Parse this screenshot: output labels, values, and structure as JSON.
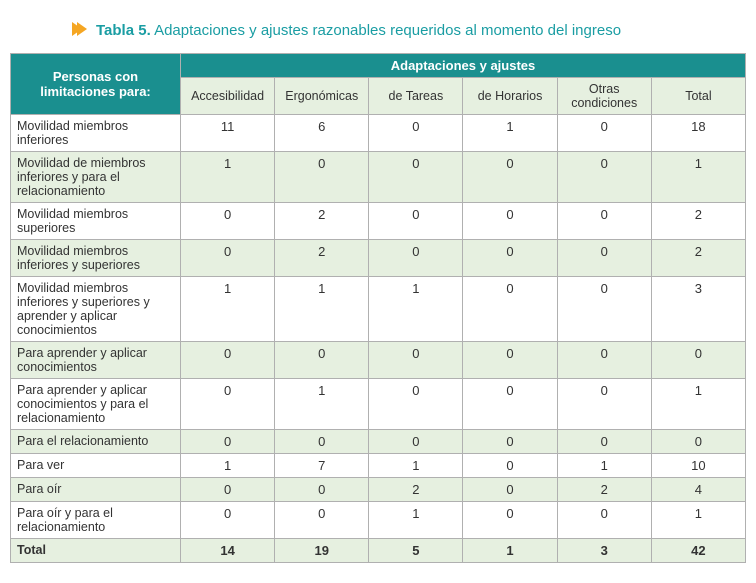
{
  "title": {
    "prefix": "Tabla 5.",
    "rest": " Adaptaciones y ajustes razonables requeridos al momento del ingreso"
  },
  "chevron_color": "#f5a623",
  "header": {
    "rowlabel": "Personas con limitaciones para:",
    "group": "Adaptaciones y ajustes",
    "cols": [
      "Accesibilidad",
      "Ergonómicas",
      "de Tareas",
      "de Horarios",
      "Otras condiciones",
      "Total"
    ]
  },
  "rows": [
    {
      "label": "Movilidad miembros inferiores",
      "vals": [
        "11",
        "6",
        "0",
        "1",
        "0",
        "18"
      ],
      "alt": false
    },
    {
      "label": "Movilidad de miembros inferiores y para el relacionamiento",
      "vals": [
        "1",
        "0",
        "0",
        "0",
        "0",
        "1"
      ],
      "alt": true
    },
    {
      "label": "Movilidad miembros superiores",
      "vals": [
        "0",
        "2",
        "0",
        "0",
        "0",
        "2"
      ],
      "alt": false
    },
    {
      "label": "Movilidad miembros inferiores y superiores",
      "vals": [
        "0",
        "2",
        "0",
        "0",
        "0",
        "2"
      ],
      "alt": true
    },
    {
      "label": "Movilidad miembros inferiores y superiores y aprender y aplicar conocimientos",
      "vals": [
        "1",
        "1",
        "1",
        "0",
        "0",
        "3"
      ],
      "alt": false
    },
    {
      "label": "Para aprender y aplicar conocimientos",
      "vals": [
        "0",
        "0",
        "0",
        "0",
        "0",
        "0"
      ],
      "alt": true
    },
    {
      "label": "Para aprender y aplicar conocimientos y para el relacionamiento",
      "vals": [
        "0",
        "1",
        "0",
        "0",
        "0",
        "1"
      ],
      "alt": false
    },
    {
      "label": "Para el relacionamiento",
      "vals": [
        "0",
        "0",
        "0",
        "0",
        "0",
        "0"
      ],
      "alt": true
    },
    {
      "label": "Para ver",
      "vals": [
        "1",
        "7",
        "1",
        "0",
        "1",
        "10"
      ],
      "alt": false
    },
    {
      "label": "Para oír",
      "vals": [
        "0",
        "0",
        "2",
        "0",
        "2",
        "4"
      ],
      "alt": true
    },
    {
      "label": "Para oír y para el relacionamiento",
      "vals": [
        "0",
        "0",
        "1",
        "0",
        "0",
        "1"
      ],
      "alt": false
    }
  ],
  "total": {
    "label": "Total",
    "vals": [
      "14",
      "19",
      "5",
      "1",
      "3",
      "42"
    ]
  },
  "colors": {
    "teal_header": "#1a8f8f",
    "alt_row": "#e6f0e0",
    "border": "#b0b0b0",
    "title": "#1a9da3"
  }
}
